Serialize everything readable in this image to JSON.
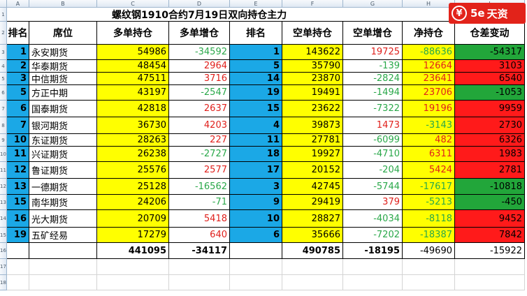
{
  "sheet": {
    "title": "螺纹钢1910合约7月19日双向持仓主力",
    "column_letters": [
      "A",
      "B",
      "C",
      "D",
      "E",
      "F",
      "G",
      "H",
      "I"
    ],
    "row_numbers": [
      "1",
      "2",
      "3",
      "4",
      "5",
      "6",
      "7",
      "8",
      "9",
      "10",
      "11",
      "12",
      "13",
      "14",
      "15",
      "16",
      "17",
      "18",
      "19"
    ],
    "headers": [
      "排名",
      "席位",
      "多单持仓",
      "多单增仓",
      "排名",
      "空单持仓",
      "空单增仓",
      "净持仓",
      "仓差变动"
    ],
    "rows": [
      {
        "rank_long": "1",
        "broker": "永安期货",
        "long_pos": "54986",
        "long_chg": "-34592",
        "rank_short": "1",
        "short_pos": "143622",
        "short_chg": "19725",
        "net": "-88636",
        "diff": "-54317"
      },
      {
        "rank_long": "2",
        "broker": "华泰期货",
        "long_pos": "48454",
        "long_chg": "2964",
        "rank_short": "5",
        "short_pos": "35790",
        "short_chg": "-139",
        "net": "12664",
        "diff": "3103"
      },
      {
        "rank_long": "3",
        "broker": "中信期货",
        "long_pos": "47511",
        "long_chg": "3716",
        "rank_short": "14",
        "short_pos": "23870",
        "short_chg": "-2824",
        "net": "23641",
        "diff": "6540"
      },
      {
        "rank_long": "5",
        "broker": "方正中期",
        "long_pos": "43197",
        "long_chg": "-2547",
        "rank_short": "19",
        "short_pos": "19491",
        "short_chg": "-1494",
        "net": "23706",
        "diff": "-1053"
      },
      {
        "rank_long": "6",
        "broker": "国泰期货",
        "long_pos": "42818",
        "long_chg": "2637",
        "rank_short": "15",
        "short_pos": "23622",
        "short_chg": "-7322",
        "net": "19196",
        "diff": "9959"
      },
      {
        "rank_long": "7",
        "broker": "银河期货",
        "long_pos": "36730",
        "long_chg": "4203",
        "rank_short": "4",
        "short_pos": "39873",
        "short_chg": "1473",
        "net": "-3143",
        "diff": "2730"
      },
      {
        "rank_long": "10",
        "broker": "东证期货",
        "long_pos": "28263",
        "long_chg": "227",
        "rank_short": "11",
        "short_pos": "27781",
        "short_chg": "-6099",
        "net": "482",
        "diff": "6326"
      },
      {
        "rank_long": "11",
        "broker": "兴证期货",
        "long_pos": "26238",
        "long_chg": "-2727",
        "rank_short": "18",
        "short_pos": "19927",
        "short_chg": "-4710",
        "net": "6311",
        "diff": "1983"
      },
      {
        "rank_long": "12",
        "broker": "鲁证期货",
        "long_pos": "25576",
        "long_chg": "2577",
        "rank_short": "17",
        "short_pos": "20152",
        "short_chg": "-204",
        "net": "5424",
        "diff": "2781"
      },
      {
        "rank_long": "13",
        "broker": "一德期货",
        "long_pos": "25128",
        "long_chg": "-16562",
        "rank_short": "3",
        "short_pos": "42745",
        "short_chg": "-5744",
        "net": "-17617",
        "diff": "-10818"
      },
      {
        "rank_long": "15",
        "broker": "南华期货",
        "long_pos": "24206",
        "long_chg": "-71",
        "rank_short": "9",
        "short_pos": "29419",
        "short_chg": "379",
        "net": "-5213",
        "diff": "-450"
      },
      {
        "rank_long": "16",
        "broker": "光大期货",
        "long_pos": "20709",
        "long_chg": "5418",
        "rank_short": "10",
        "short_pos": "28827",
        "short_chg": "-4034",
        "net": "-8118",
        "diff": "9452"
      },
      {
        "rank_long": "19",
        "broker": "五矿经易",
        "long_pos": "17279",
        "long_chg": "640",
        "rank_short": "6",
        "short_pos": "35666",
        "short_chg": "-7202",
        "net": "-18387",
        "diff": "7842"
      }
    ],
    "totals": {
      "long_pos": "441095",
      "long_chg": "-34117",
      "short_pos": "490785",
      "short_chg": "-18195",
      "net": "-49690",
      "diff": "-15922"
    }
  },
  "logo": {
    "mark": "¥",
    "brand": "5e",
    "text": "天资"
  },
  "colors": {
    "rank_blue": "#1ba8e6",
    "yellow": "#ffff00",
    "red": "#ff1a1a",
    "green": "#22a63a"
  }
}
